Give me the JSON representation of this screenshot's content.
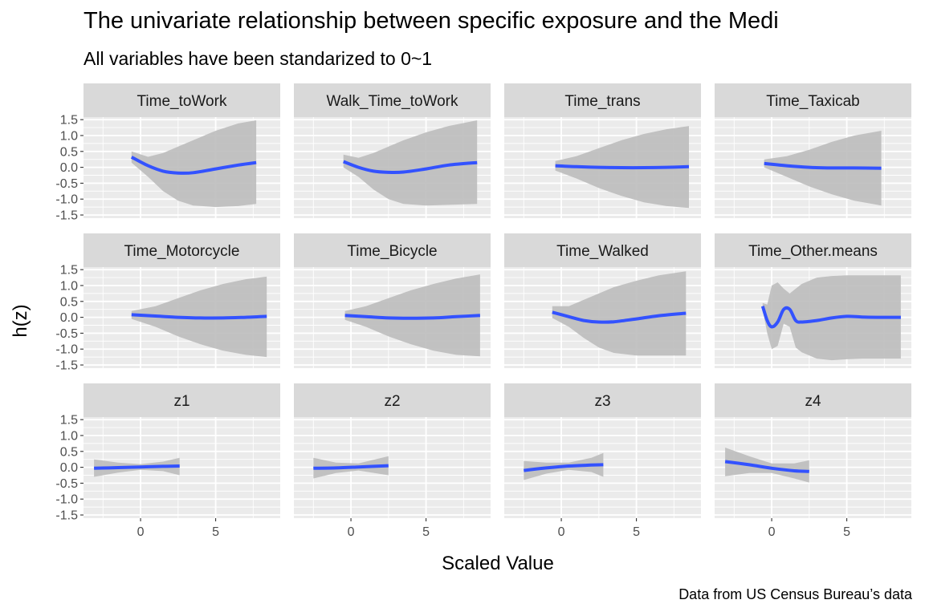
{
  "title": "The univariate relationship between specific exposure and the Medi",
  "subtitle": "All variables have been standarized to 0~1",
  "caption": "Data from US Census Bureau’s data",
  "chart_data": {
    "type": "line",
    "xlabel": "Scaled Value",
    "ylabel": "h(z)",
    "xlim": [
      -3.8,
      9.3
    ],
    "ylim": [
      -1.6,
      1.58
    ],
    "x_ticks": [
      "0",
      "5"
    ],
    "x_tick_values": [
      0,
      5
    ],
    "y_ticks": [
      "1.5",
      "1.0",
      "0.5",
      "0.0",
      "-0.5",
      "-1.0",
      "-1.5"
    ],
    "y_tick_values": [
      1.5,
      1.0,
      0.5,
      0.0,
      -0.5,
      -1.0,
      -1.5
    ],
    "colors": {
      "line": "#3352ff",
      "ribbon": "#bdbdbd",
      "panel": "#ebebeb",
      "strip": "#d9d9d9",
      "grid": "#ffffff"
    },
    "panels": [
      {
        "name": "Time_toWork",
        "x": [
          -0.6,
          0.5,
          1.5,
          2.5,
          3.5,
          5,
          6.5,
          7.7
        ],
        "y": [
          0.32,
          0.05,
          -0.12,
          -0.18,
          -0.17,
          -0.05,
          0.07,
          0.15
        ],
        "upper": [
          0.5,
          0.33,
          0.45,
          0.65,
          0.85,
          1.15,
          1.38,
          1.48
        ],
        "lower": [
          0.15,
          -0.3,
          -0.75,
          -1.05,
          -1.2,
          -1.25,
          -1.22,
          -1.15
        ]
      },
      {
        "name": "Walk_Time_toWork",
        "x": [
          -0.5,
          0.5,
          1.5,
          2.5,
          3.5,
          5,
          6.5,
          8.4
        ],
        "y": [
          0.18,
          0.0,
          -0.12,
          -0.16,
          -0.15,
          -0.05,
          0.07,
          0.15
        ],
        "upper": [
          0.4,
          0.3,
          0.45,
          0.65,
          0.85,
          1.1,
          1.3,
          1.48
        ],
        "lower": [
          0.0,
          -0.3,
          -0.7,
          -1.0,
          -1.15,
          -1.2,
          -1.18,
          -1.15
        ]
      },
      {
        "name": "Time_trans",
        "x": [
          -0.4,
          1,
          2.5,
          4,
          5.5,
          7,
          8.5
        ],
        "y": [
          0.05,
          0.02,
          0.0,
          -0.01,
          -0.01,
          0.0,
          0.02
        ],
        "upper": [
          0.2,
          0.35,
          0.6,
          0.85,
          1.05,
          1.2,
          1.3
        ],
        "lower": [
          -0.1,
          -0.35,
          -0.65,
          -0.9,
          -1.1,
          -1.22,
          -1.28
        ]
      },
      {
        "name": "Time_Taxicab",
        "x": [
          -0.5,
          1,
          2.5,
          4,
          5.5,
          7.3
        ],
        "y": [
          0.12,
          0.05,
          0.0,
          -0.02,
          -0.02,
          -0.03
        ],
        "upper": [
          0.25,
          0.35,
          0.55,
          0.8,
          1.0,
          1.15
        ],
        "lower": [
          0.0,
          -0.3,
          -0.6,
          -0.85,
          -1.05,
          -1.2
        ]
      },
      {
        "name": "Time_Motorcycle",
        "x": [
          -0.6,
          1,
          2.5,
          4,
          5.5,
          7,
          8.4
        ],
        "y": [
          0.08,
          0.04,
          0.0,
          -0.02,
          -0.02,
          0.0,
          0.03
        ],
        "upper": [
          0.2,
          0.35,
          0.6,
          0.85,
          1.05,
          1.2,
          1.28
        ],
        "lower": [
          -0.05,
          -0.3,
          -0.6,
          -0.85,
          -1.05,
          -1.18,
          -1.25
        ]
      },
      {
        "name": "Time_Bicycle",
        "x": [
          -0.4,
          1,
          2.5,
          4,
          5.5,
          7,
          8.6
        ],
        "y": [
          0.06,
          0.02,
          -0.02,
          -0.03,
          -0.02,
          0.02,
          0.06
        ],
        "upper": [
          0.2,
          0.35,
          0.6,
          0.85,
          1.05,
          1.22,
          1.35
        ],
        "lower": [
          -0.08,
          -0.3,
          -0.6,
          -0.85,
          -1.05,
          -1.18,
          -1.23
        ]
      },
      {
        "name": "Time_Walked",
        "x": [
          -0.6,
          0.5,
          1.5,
          2.5,
          3.5,
          5,
          6.5,
          8.3
        ],
        "y": [
          0.16,
          0.02,
          -0.1,
          -0.15,
          -0.14,
          -0.05,
          0.05,
          0.13
        ],
        "upper": [
          0.35,
          0.35,
          0.55,
          0.75,
          0.95,
          1.15,
          1.32,
          1.45
        ],
        "lower": [
          -0.02,
          -0.3,
          -0.65,
          -0.95,
          -1.12,
          -1.2,
          -1.2,
          -1.2
        ]
      },
      {
        "name": "Time_Other.means",
        "x": [
          -0.6,
          -0.3,
          0.0,
          0.4,
          0.8,
          1.2,
          1.6,
          2.0,
          3.0,
          4.0,
          5.0,
          6.0,
          7.0,
          8.6
        ],
        "y": [
          0.35,
          -0.1,
          -0.3,
          -0.15,
          0.25,
          0.25,
          -0.1,
          -0.15,
          -0.1,
          -0.02,
          0.03,
          0.01,
          0.0,
          0.0
        ],
        "upper": [
          0.45,
          0.4,
          1.0,
          1.1,
          0.9,
          0.75,
          0.9,
          1.05,
          1.25,
          1.3,
          1.32,
          1.32,
          1.32,
          1.32
        ],
        "lower": [
          0.25,
          -0.5,
          -1.0,
          -0.9,
          -0.2,
          -0.3,
          -0.95,
          -1.1,
          -1.3,
          -1.35,
          -1.32,
          -1.3,
          -1.3,
          -1.3
        ]
      },
      {
        "name": "z1",
        "x": [
          -3.1,
          -1.5,
          0,
          1.5,
          2.6
        ],
        "y": [
          -0.03,
          -0.01,
          0.01,
          0.03,
          0.04
        ],
        "upper": [
          0.25,
          0.15,
          0.1,
          0.18,
          0.3
        ],
        "lower": [
          -0.3,
          -0.17,
          -0.08,
          -0.12,
          -0.25
        ]
      },
      {
        "name": "z2",
        "x": [
          -2.5,
          -1,
          0.5,
          2.5
        ],
        "y": [
          -0.03,
          -0.02,
          0.01,
          0.05
        ],
        "upper": [
          0.3,
          0.15,
          0.12,
          0.35
        ],
        "lower": [
          -0.35,
          -0.18,
          -0.1,
          -0.25
        ]
      },
      {
        "name": "z3",
        "x": [
          -2.5,
          -1,
          0.5,
          2,
          2.8
        ],
        "y": [
          -0.1,
          -0.02,
          0.04,
          0.07,
          0.08
        ],
        "upper": [
          0.2,
          0.15,
          0.15,
          0.3,
          0.45
        ],
        "lower": [
          -0.4,
          -0.2,
          -0.08,
          -0.15,
          -0.3
        ]
      },
      {
        "name": "z4",
        "x": [
          -3.1,
          -1.5,
          0,
          1.5,
          2.5
        ],
        "y": [
          0.18,
          0.08,
          -0.03,
          -0.11,
          -0.13
        ],
        "upper": [
          0.62,
          0.35,
          0.12,
          0.12,
          0.22
        ],
        "lower": [
          -0.28,
          -0.18,
          -0.18,
          -0.35,
          -0.48
        ]
      }
    ]
  }
}
